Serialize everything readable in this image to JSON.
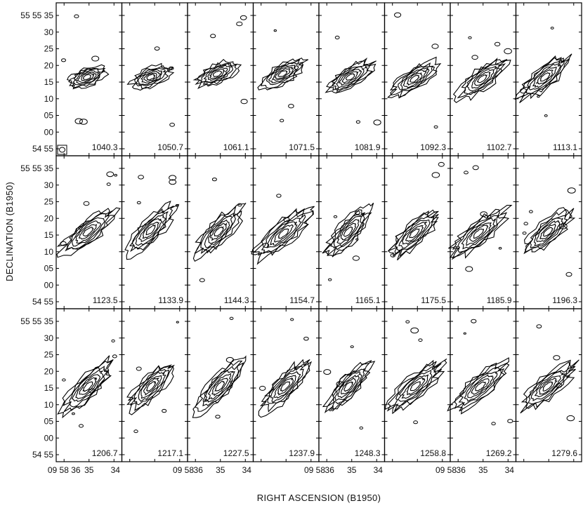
{
  "chart_data": {
    "type": "contour",
    "grid": {
      "rows": 3,
      "cols": 8
    },
    "xlabel": "RIGHT ASCENSION (B1950)",
    "ylabel": "DECLINATION (B1950)",
    "y_ticks": [
      "55 55 35",
      "30",
      "25",
      "20",
      "15",
      "10",
      "05",
      "00",
      "54 55"
    ],
    "x_ticks_top_label": "",
    "x_ticks": [
      [
        "09 58 36",
        "35",
        "34"
      ],
      [
        "09 58",
        "36",
        "35",
        "34"
      ],
      [
        "09 58",
        "36",
        "35",
        "34"
      ],
      [
        "09 58",
        "36",
        "35",
        "34"
      ]
    ],
    "x_tick_labels_row": [
      "09 58 36",
      "35",
      "34",
      "09 58",
      "36",
      "35",
      "34",
      "09 58",
      "36",
      "35",
      "34",
      "09 58",
      "36",
      "35",
      "34"
    ],
    "velocities": [
      "1040.3",
      "1050.7",
      "1061.1",
      "1071.5",
      "1081.9",
      "1092.3",
      "1102.7",
      "1113.1",
      "1123.5",
      "1133.9",
      "1144.3",
      "1154.7",
      "1165.1",
      "1175.5",
      "1185.9",
      "1196.3",
      "1206.7",
      "1217.1",
      "1227.5",
      "1237.9",
      "1248.3",
      "1258.8",
      "1269.2",
      "1279.6"
    ],
    "beam_panel": 0,
    "source_center_dec": [
      16.5,
      16.5,
      17.5,
      17.5,
      16.5,
      16.0,
      16.0,
      16.5,
      16.0,
      16.5,
      16.0,
      15.5,
      16.0,
      15.5,
      15.5,
      16.0,
      15.5,
      15.5,
      15.5,
      15.5,
      15.5,
      15.5,
      15.5,
      15.5
    ]
  }
}
